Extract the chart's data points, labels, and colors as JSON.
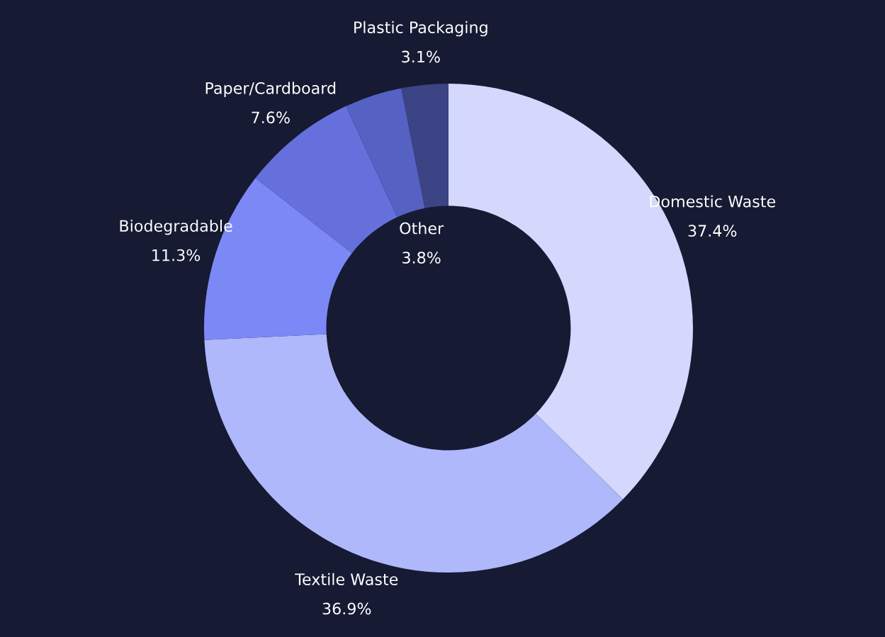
{
  "chart_data": {
    "type": "donut",
    "categories": [
      "Domestic Waste",
      "Textile Waste",
      "Biodegradable",
      "Paper/Cardboard",
      "Other",
      "Plastic Packaging"
    ],
    "values": [
      37.4,
      36.9,
      11.3,
      7.6,
      3.8,
      3.1
    ],
    "value_labels": [
      "37.4%",
      "36.9%",
      "11.3%",
      "7.6%",
      "3.8%",
      "3.1%"
    ],
    "colors": [
      "#d4d8fc",
      "#b0b8fc",
      "#7d88f7",
      "#6670dd",
      "#5561c3",
      "#3c4486"
    ]
  }
}
